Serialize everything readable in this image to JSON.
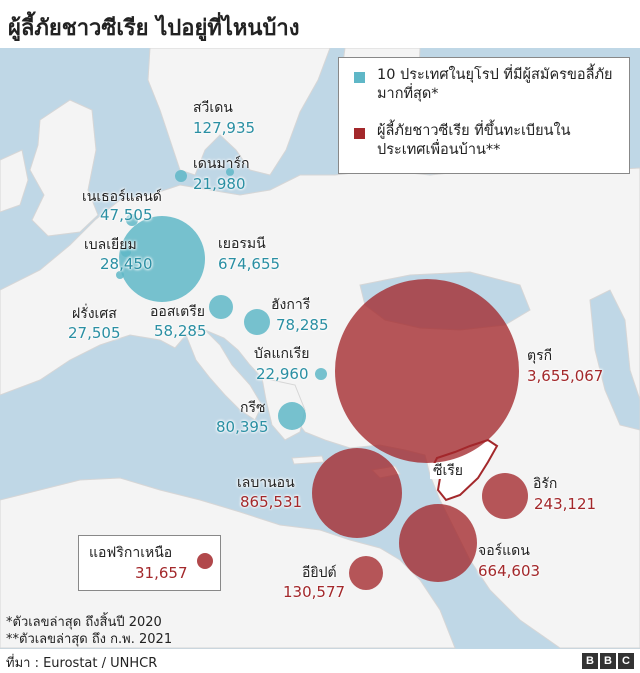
{
  "title": "ผู้ลี้ภัยชาวซีเรีย ไปอยู่ที่ไหนบ้าง",
  "legend": {
    "eu_label": "10 ประเทศในยุโรป ที่มีผู้สมัครขอลี้ภัยมากที่สุด*",
    "neighbor_label": "ผู้ลี้ภัยชาวซีเรีย ที่ขึ้นทะเบียนในประเทศเพื่อนบ้าน**"
  },
  "colors": {
    "eu": "#5fb7c7",
    "neighbor": "#a3282b",
    "land": "#f5f5f5",
    "sea": "#bfd7e6"
  },
  "syria_label": "ซีเรีย",
  "countries": {
    "sweden": {
      "name": "สวีเดน",
      "value": "127,935"
    },
    "denmark": {
      "name": "เดนมาร์ก",
      "value": "21,980"
    },
    "netherlands": {
      "name": "เนเธอร์แลนด์",
      "value": "47,505"
    },
    "belgium": {
      "name": "เบลเยียม",
      "value": "28,450"
    },
    "germany": {
      "name": "เยอรมนี",
      "value": "674,655"
    },
    "france": {
      "name": "ฝรั่งเศส",
      "value": "27,505"
    },
    "austria": {
      "name": "ออสเตรีย",
      "value": "58,285"
    },
    "hungary": {
      "name": "ฮังการี",
      "value": "78,285"
    },
    "bulgaria": {
      "name": "บัลแกเรีย",
      "value": "22,960"
    },
    "greece": {
      "name": "กรีซ",
      "value": "80,395"
    },
    "turkey": {
      "name": "ตุรกี",
      "value": "3,655,067"
    },
    "lebanon": {
      "name": "เลบานอน",
      "value": "865,531"
    },
    "iraq": {
      "name": "อิรัก",
      "value": "243,121"
    },
    "jordan": {
      "name": "จอร์แดน",
      "value": "664,603"
    },
    "egypt": {
      "name": "อียิปต์",
      "value": "130,577"
    },
    "north_africa": {
      "name": "แอฟริกาเหนือ",
      "value": "31,657"
    }
  },
  "notes": {
    "note1": "*ตัวเลขล่าสุด ถึงสิ้นปี 2020",
    "note2": "**ตัวเลขล่าสุด ถึง ก.พ. 2021"
  },
  "source": "ที่มา : Eurostat / UNHCR",
  "logo_letters": [
    "B",
    "B",
    "C"
  ]
}
